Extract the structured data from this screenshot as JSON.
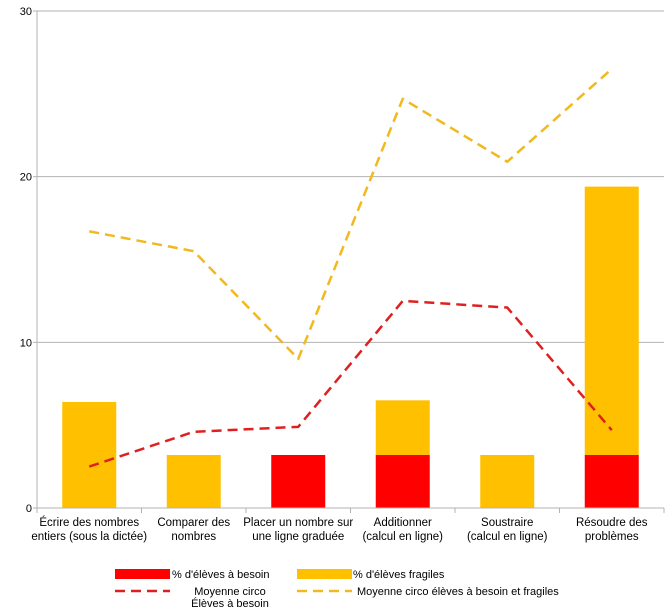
{
  "chart_data": {
    "type": "bar",
    "stacked": true,
    "title": "",
    "xlabel": "",
    "ylabel": "",
    "ylim": [
      0,
      30
    ],
    "yticks": [
      "0",
      "10",
      "20",
      "30"
    ],
    "grid": "horizontal",
    "legend_position": "bottom",
    "categories": [
      [
        "Écrire des nombres",
        "entiers (sous la dictée)"
      ],
      [
        "Comparer des",
        "nombres"
      ],
      [
        "Placer un nombre sur",
        "une ligne graduée"
      ],
      [
        "Additionner",
        "(calcul en ligne)"
      ],
      [
        "Soustraire",
        "(calcul en ligne)"
      ],
      [
        "Résoudre des",
        "problèmes"
      ]
    ],
    "bar_series": [
      {
        "name": "% d'élèves à besoin",
        "color": "#ff0000",
        "values": [
          0,
          0,
          3.2,
          3.2,
          0,
          3.2
        ]
      },
      {
        "name": "% d'élèves fragiles",
        "color": "#ffc000",
        "values": [
          6.4,
          3.2,
          0,
          3.3,
          3.2,
          16.2
        ]
      }
    ],
    "line_series": [
      {
        "name": [
          "Moyenne circo",
          "Élèves à besoin"
        ],
        "color": "#e02020",
        "values": [
          2.5,
          4.6,
          4.9,
          12.5,
          12.1,
          4.7
        ]
      },
      {
        "name": [
          "Moyenne circo élèves à besoin et fragiles"
        ],
        "color": "#f2b91e",
        "values": [
          16.7,
          15.5,
          9.0,
          24.7,
          20.9,
          26.5
        ]
      }
    ]
  }
}
